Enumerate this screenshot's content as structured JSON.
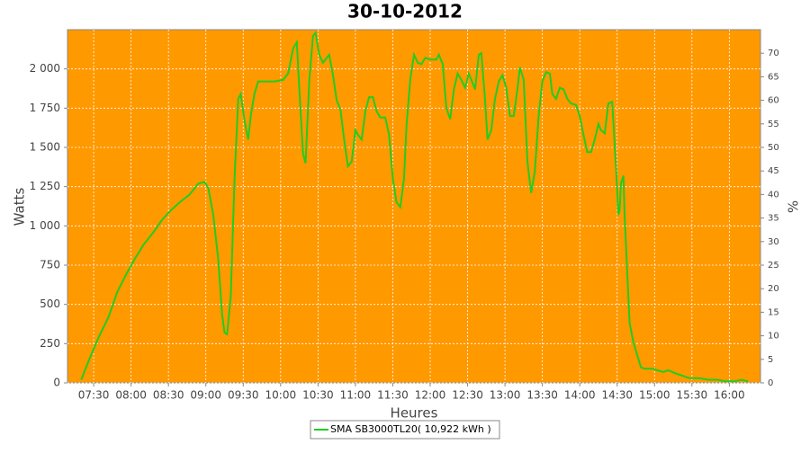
{
  "chart_data": {
    "type": "line",
    "title": "30-10-2012",
    "x_label": "Heures",
    "y_label": "Watts",
    "y2_label": "%",
    "background": "#ff9900",
    "grid": true,
    "xlim": [
      429,
      985
    ],
    "xticks": [
      {
        "value": 450,
        "label": "07:30"
      },
      {
        "value": 480,
        "label": "08:00"
      },
      {
        "value": 510,
        "label": "08:30"
      },
      {
        "value": 540,
        "label": "09:00"
      },
      {
        "value": 570,
        "label": "09:30"
      },
      {
        "value": 600,
        "label": "10:00"
      },
      {
        "value": 630,
        "label": "10:30"
      },
      {
        "value": 660,
        "label": "11:00"
      },
      {
        "value": 690,
        "label": "11:30"
      },
      {
        "value": 720,
        "label": "12:00"
      },
      {
        "value": 750,
        "label": "12:30"
      },
      {
        "value": 780,
        "label": "13:00"
      },
      {
        "value": 810,
        "label": "13:30"
      },
      {
        "value": 840,
        "label": "14:00"
      },
      {
        "value": 870,
        "label": "14:30"
      },
      {
        "value": 900,
        "label": "15:00"
      },
      {
        "value": 930,
        "label": "15:30"
      },
      {
        "value": 960,
        "label": "16:00"
      }
    ],
    "ylim": [
      0,
      2250
    ],
    "yticks": [
      0,
      250,
      500,
      750,
      {
        "value": 1000,
        "label": "1 000"
      },
      {
        "value": 1250,
        "label": "1 250"
      },
      {
        "value": 1500,
        "label": "1 500"
      },
      {
        "value": 1750,
        "label": "1 750"
      },
      {
        "value": 2000,
        "label": "2 000"
      }
    ],
    "y2lim": [
      0,
      75
    ],
    "y2ticks": [
      0,
      5,
      10,
      15,
      20,
      25,
      30,
      35,
      40,
      45,
      50,
      55,
      60,
      65,
      70
    ],
    "x": [
      440,
      447,
      454,
      462,
      469,
      476,
      483,
      490,
      498,
      505,
      512,
      519,
      527,
      534,
      539,
      542,
      546,
      550,
      553,
      555,
      557,
      560,
      563,
      566,
      568,
      571,
      574,
      576,
      579,
      582,
      588,
      595,
      602,
      606,
      610,
      613,
      615,
      618,
      620,
      623,
      626,
      628,
      631,
      634,
      636,
      639,
      642,
      645,
      648,
      651,
      654,
      657,
      660,
      662,
      665,
      668,
      671,
      674,
      677,
      680,
      684,
      687,
      690,
      693,
      696,
      699,
      701,
      704,
      707,
      710,
      713,
      716,
      720,
      725,
      727,
      730,
      733,
      736,
      739,
      742,
      745,
      748,
      751,
      753,
      756,
      759,
      761,
      764,
      766,
      769,
      772,
      775,
      778,
      781,
      784,
      787,
      790,
      792,
      795,
      798,
      801,
      804,
      807,
      810,
      813,
      816,
      818,
      821,
      824,
      827,
      830,
      833,
      837,
      840,
      843,
      846,
      849,
      852,
      855,
      857,
      860,
      863,
      866,
      869,
      871,
      872,
      873,
      875,
      876,
      878,
      880,
      883,
      886,
      889,
      892,
      895,
      899,
      902,
      907,
      911,
      917,
      921,
      928,
      936,
      943,
      950,
      957,
      964,
      970,
      975
    ],
    "series": [
      {
        "name": "SMA SB3000TL20( 10,922 kWh )",
        "color": "#22cc22",
        "values": [
          20,
          160,
          290,
          420,
          580,
          690,
          790,
          880,
          960,
          1040,
          1100,
          1150,
          1200,
          1270,
          1280,
          1240,
          1070,
          780,
          440,
          320,
          310,
          550,
          1300,
          1810,
          1840,
          1670,
          1550,
          1700,
          1840,
          1920,
          1920,
          1920,
          1930,
          1970,
          2130,
          2170,
          1870,
          1460,
          1400,
          1930,
          2210,
          2230,
          2090,
          2040,
          2060,
          2090,
          1960,
          1800,
          1740,
          1550,
          1380,
          1410,
          1610,
          1580,
          1550,
          1730,
          1820,
          1820,
          1730,
          1690,
          1690,
          1580,
          1300,
          1150,
          1120,
          1300,
          1640,
          1930,
          2090,
          2040,
          2030,
          2070,
          2060,
          2060,
          2090,
          2030,
          1750,
          1680,
          1870,
          1970,
          1930,
          1880,
          1970,
          1930,
          1870,
          2090,
          2100,
          1810,
          1550,
          1610,
          1810,
          1920,
          1960,
          1880,
          1700,
          1700,
          1870,
          2010,
          1930,
          1410,
          1210,
          1350,
          1700,
          1920,
          1980,
          1970,
          1840,
          1810,
          1880,
          1870,
          1810,
          1780,
          1770,
          1700,
          1580,
          1470,
          1470,
          1550,
          1650,
          1610,
          1590,
          1780,
          1790,
          1380,
          1070,
          1100,
          1270,
          1320,
          1070,
          720,
          380,
          260,
          180,
          100,
          90,
          90,
          90,
          80,
          70,
          80,
          60,
          50,
          30,
          30,
          20,
          20,
          10,
          10,
          20,
          10
        ]
      }
    ]
  }
}
